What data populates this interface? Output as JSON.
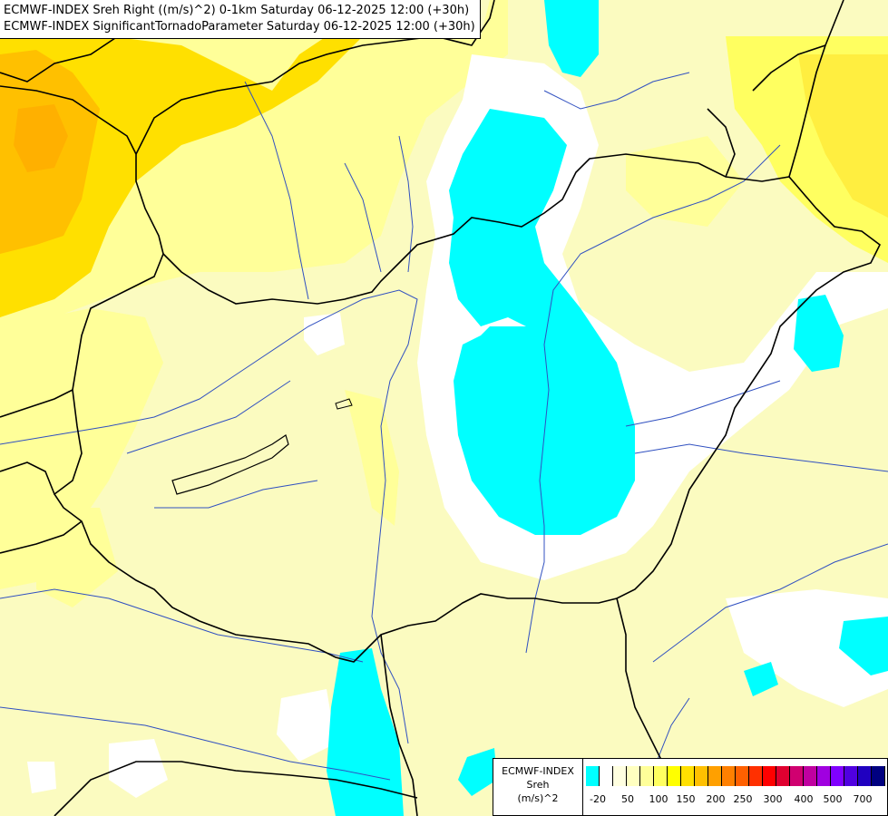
{
  "header": {
    "line1": "ECMWF-INDEX Sreh Right ((m/s)^2) 0-1km Saturday 06-12-2025 12:00 (+30h)",
    "line2": "ECMWF-INDEX SignificantTornadoParameter Saturday 06-12-2025 12:00 (+30h)"
  },
  "legend": {
    "model": "ECMWF-INDEX",
    "variable": "Sreh",
    "unit": "(m/s)^2",
    "ticks": [
      "-20",
      "50",
      "100",
      "150",
      "200",
      "250",
      "300",
      "400",
      "500",
      "700"
    ],
    "colors": [
      "#00ffff",
      "#ffffff",
      "#ffffe0",
      "#ffffc0",
      "#ffff99",
      "#ffff60",
      "#ffff00",
      "#ffe000",
      "#ffc000",
      "#ffa000",
      "#ff8000",
      "#ff6000",
      "#ff3000",
      "#ff0000",
      "#e00030",
      "#d00070",
      "#c000a0",
      "#a000e0",
      "#8000ff",
      "#5000e0",
      "#2000c0",
      "#000080"
    ]
  }
}
